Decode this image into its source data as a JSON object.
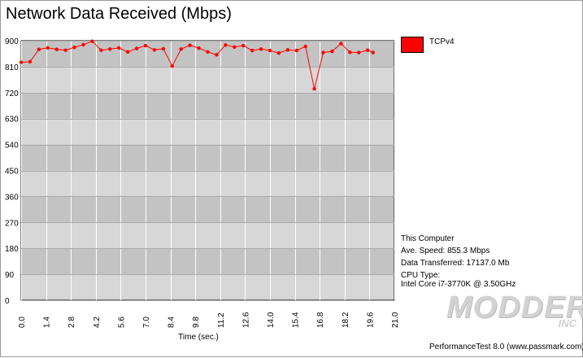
{
  "window": {
    "title": "Network Data Received (Mbps)"
  },
  "chart_data": {
    "type": "line",
    "title": "Network Data Received (Mbps)",
    "xlabel": "Time (sec.)",
    "ylabel": "",
    "xlim": [
      0,
      21.0
    ],
    "ylim": [
      0,
      900
    ],
    "x_ticks": [
      "0.0",
      "1.4",
      "2.8",
      "4.2",
      "5.6",
      "7.0",
      "8.4",
      "9.8",
      "11.2",
      "12.6",
      "14.0",
      "15.4",
      "16.8",
      "18.2",
      "19.6",
      "21.0"
    ],
    "y_ticks": [
      "0",
      "90",
      "180",
      "270",
      "360",
      "450",
      "540",
      "630",
      "720",
      "810",
      "900"
    ],
    "grid": true,
    "legend_position": "right",
    "series": [
      {
        "name": "TCPv4",
        "color": "#ff0000",
        "x": [
          0.0,
          0.5,
          1.0,
          1.5,
          2.0,
          2.5,
          3.0,
          3.5,
          4.0,
          4.5,
          5.0,
          5.5,
          6.0,
          6.5,
          7.0,
          7.5,
          8.0,
          8.5,
          9.0,
          9.5,
          10.0,
          10.5,
          11.0,
          11.5,
          12.0,
          12.5,
          13.0,
          13.5,
          14.0,
          14.5,
          15.0,
          15.5,
          16.0,
          16.5,
          17.0,
          17.5,
          18.0,
          18.5,
          19.0,
          19.5,
          19.8
        ],
        "values": [
          825,
          827,
          870,
          875,
          870,
          867,
          877,
          886,
          898,
          867,
          871,
          875,
          861,
          873,
          883,
          868,
          872,
          812,
          871,
          884,
          874,
          861,
          851,
          885,
          878,
          883,
          866,
          871,
          866,
          857,
          868,
          866,
          880,
          733,
          859,
          863,
          890,
          860,
          859,
          867,
          859
        ]
      }
    ]
  },
  "legend": {
    "label": "TCPv4",
    "color": "#ff0000"
  },
  "info": {
    "computer": "This Computer",
    "ave_speed": "Ave. Speed: 855.3 Mbps",
    "data_transferred": "Data Transferred: 17137.0 Mb",
    "cpu_type_label": "CPU Type:",
    "cpu_name": "Intel Core i7-3770K @ 3.50GHz"
  },
  "watermark": {
    "main": "MODDERS",
    "sub": "INC"
  },
  "footer": {
    "text": "PerformanceTest 8.0 (www.passmark.com)"
  }
}
